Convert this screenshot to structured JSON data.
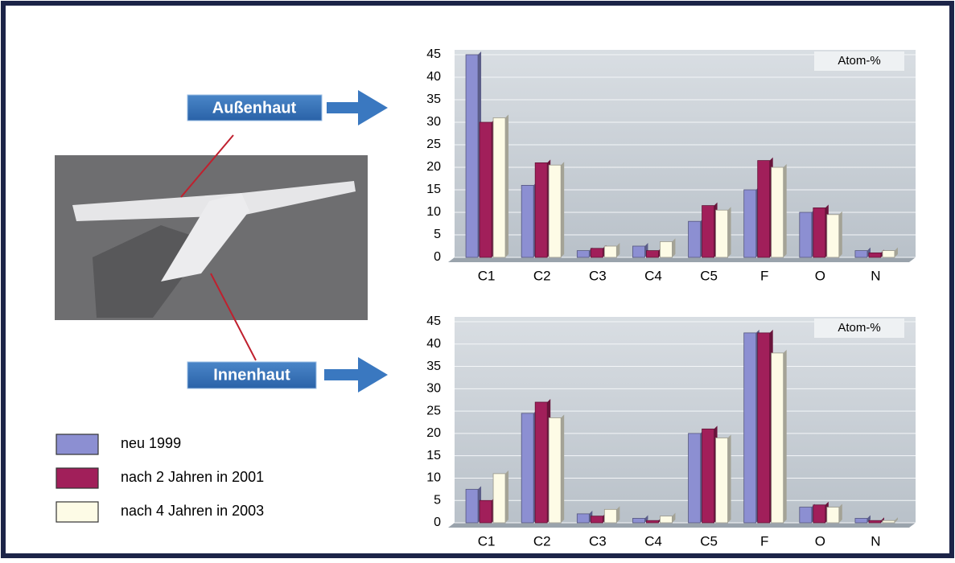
{
  "chart_data": [
    {
      "type": "bar",
      "annotation": "Außenhaut",
      "unit_label": "Atom-%",
      "categories": [
        "C1",
        "C2",
        "C3",
        "C4",
        "C5",
        "F",
        "O",
        "N"
      ],
      "series": [
        {
          "name": "neu 1999",
          "color": "#8c8fd2",
          "values": [
            45,
            16,
            1.5,
            2.5,
            8,
            15,
            10,
            1.5
          ]
        },
        {
          "name": "nach 2 Jahren in 2001",
          "color": "#a11f5a",
          "values": [
            30,
            21,
            2,
            1.5,
            11.5,
            21.5,
            11,
            1
          ]
        },
        {
          "name": "nach 4 Jahren in 2003",
          "color": "#fdfbe6",
          "values": [
            31,
            20.5,
            2.5,
            3.5,
            10.5,
            20,
            9.5,
            1.5
          ]
        }
      ],
      "ylim": [
        0,
        45
      ],
      "yticks": [
        0,
        5,
        10,
        15,
        20,
        25,
        30,
        35,
        40,
        45
      ],
      "grid": true
    },
    {
      "type": "bar",
      "annotation": "Innenhaut",
      "unit_label": "Atom-%",
      "categories": [
        "C1",
        "C2",
        "C3",
        "C4",
        "C5",
        "F",
        "O",
        "N"
      ],
      "series": [
        {
          "color": "#8c8fd2",
          "values": [
            7.5,
            24.5,
            2,
            1,
            20,
            42.5,
            3.5,
            1
          ]
        },
        {
          "color": "#a11f5a",
          "values": [
            5,
            27,
            1.5,
            0.5,
            21,
            42.5,
            4,
            0.5
          ]
        },
        {
          "color": "#fdfbe6",
          "values": [
            11,
            23.5,
            3,
            1.5,
            19,
            38,
            3.5,
            0.5
          ]
        }
      ],
      "ylim": [
        0,
        45
      ],
      "yticks": [
        0,
        5,
        10,
        15,
        20,
        25,
        30,
        35,
        40,
        45
      ],
      "grid": true
    }
  ]
}
